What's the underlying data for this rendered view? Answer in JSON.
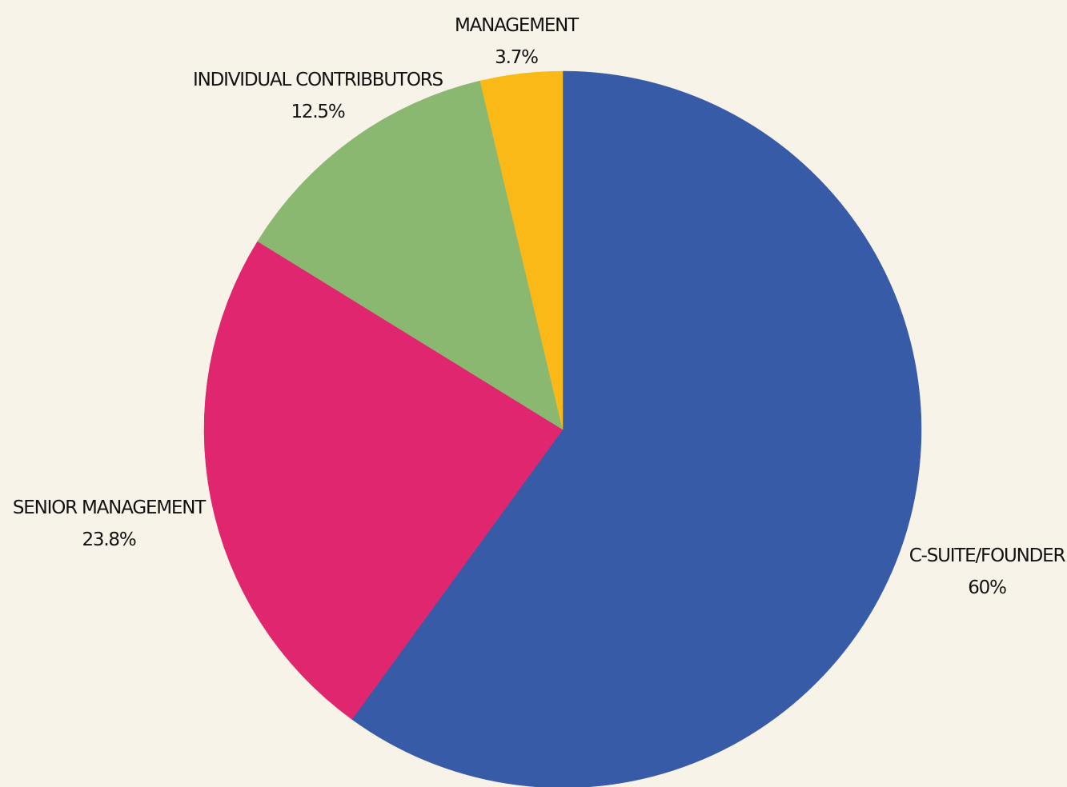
{
  "colors": {
    "background": "#F8F3E9",
    "text": "#111111"
  },
  "chart_data": {
    "type": "pie",
    "start_angle_deg": 0,
    "direction": "clockwise",
    "slices": [
      {
        "label": "C-SUITE/FOUNDER",
        "value": 60,
        "display": "60%",
        "color": "#385BA8"
      },
      {
        "label": "SENIOR MANAGEMENT",
        "value": 23.8,
        "display": "23.8%",
        "color": "#DF266E"
      },
      {
        "label": "INDIVIDUAL CONTRIBBUTORS",
        "value": 12.5,
        "display": "12.5%",
        "color": "#8BB870"
      },
      {
        "label": "MANAGEMENT",
        "value": 3.7,
        "display": "3.7%",
        "color": "#FBB917"
      }
    ]
  }
}
